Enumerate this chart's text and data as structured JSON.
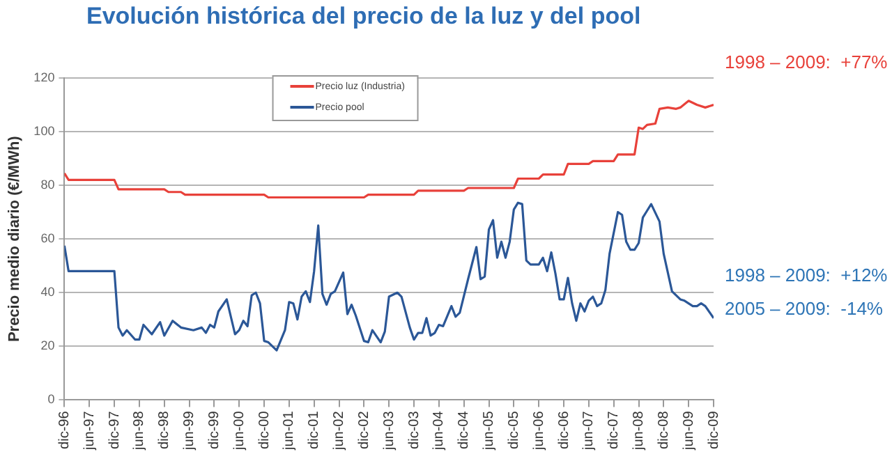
{
  "chart_data": {
    "type": "line",
    "title": "Evolución histórica del precio de la luz y del pool",
    "ylabel": "Precio medio diario (€/MWh)",
    "xlim": [
      "1996-12",
      "2009-12"
    ],
    "xticks": [
      {
        "value": "1996-12",
        "label": "dic-96"
      },
      {
        "value": "1997-06",
        "label": "jun-97"
      },
      {
        "value": "1997-12",
        "label": "dic-97"
      },
      {
        "value": "1998-06",
        "label": "jun-98"
      },
      {
        "value": "1998-12",
        "label": "dic-98"
      },
      {
        "value": "1999-06",
        "label": "jun-99"
      },
      {
        "value": "1999-12",
        "label": "dic-99"
      },
      {
        "value": "2000-06",
        "label": "jun-00"
      },
      {
        "value": "2000-12",
        "label": "dic-00"
      },
      {
        "value": "2001-06",
        "label": "jun-01"
      },
      {
        "value": "2001-12",
        "label": "dic-01"
      },
      {
        "value": "2002-06",
        "label": "jun-02"
      },
      {
        "value": "2002-12",
        "label": "dic-02"
      },
      {
        "value": "2003-06",
        "label": "jun-03"
      },
      {
        "value": "2003-12",
        "label": "dic-03"
      },
      {
        "value": "2004-06",
        "label": "jun-04"
      },
      {
        "value": "2004-12",
        "label": "dic-04"
      },
      {
        "value": "2005-06",
        "label": "jun-05"
      },
      {
        "value": "2005-12",
        "label": "dic-05"
      },
      {
        "value": "2006-06",
        "label": "jun-06"
      },
      {
        "value": "2006-12",
        "label": "dic-06"
      },
      {
        "value": "2007-06",
        "label": "jun-07"
      },
      {
        "value": "2007-12",
        "label": "dic-07"
      },
      {
        "value": "2008-06",
        "label": "jun-08"
      },
      {
        "value": "2008-12",
        "label": "dic-08"
      },
      {
        "value": "2009-06",
        "label": "jun-09"
      },
      {
        "value": "2009-12",
        "label": "dic-09"
      }
    ],
    "ylim": [
      0,
      120
    ],
    "yticks": [
      0,
      20,
      40,
      60,
      80,
      100,
      120
    ],
    "grid": "y",
    "legend": "top",
    "marker": "none",
    "series": [
      {
        "name": "Precio luz (Industria)",
        "color": "#e8413a",
        "x": [
          "1996-12",
          "1997-01",
          "1997-12",
          "1998-01",
          "1998-12",
          "1999-01",
          "1999-04",
          "1999-05",
          "2000-12",
          "2001-01",
          "2002-12",
          "2003-01",
          "2003-12",
          "2004-01",
          "2004-12",
          "2005-01",
          "2005-12",
          "2006-01",
          "2006-06",
          "2006-07",
          "2006-12",
          "2007-01",
          "2007-06",
          "2007-07",
          "2007-12",
          "2008-01",
          "2008-05",
          "2008-06",
          "2008-07",
          "2008-08",
          "2008-10",
          "2008-11",
          "2009-01",
          "2009-03",
          "2009-04",
          "2009-06",
          "2009-08",
          "2009-10",
          "2009-12"
        ],
        "values": [
          84.5,
          82,
          82,
          78.5,
          78.5,
          77.5,
          77.5,
          76.5,
          76.5,
          75.5,
          75.5,
          76.5,
          76.5,
          78,
          78,
          79,
          79,
          82.5,
          82.5,
          84,
          84,
          88,
          88,
          89,
          89,
          91.5,
          91.5,
          101.5,
          101,
          102.5,
          103,
          108.5,
          109,
          108.5,
          109,
          111.5,
          110,
          109,
          110
        ]
      },
      {
        "name": "Precio pool",
        "color": "#2b5797",
        "x": [
          "1996-12",
          "1997-01",
          "1997-12",
          "1998-01",
          "1998-02",
          "1998-03",
          "1998-05",
          "1998-06",
          "1998-07",
          "1998-09",
          "1998-11",
          "1998-12",
          "1999-02",
          "1999-04",
          "1999-07",
          "1999-09",
          "1999-10",
          "1999-11",
          "1999-12",
          "2000-01",
          "2000-03",
          "2000-05",
          "2000-06",
          "2000-07",
          "2000-08",
          "2000-09",
          "2000-10",
          "2000-11",
          "2000-12",
          "2001-01",
          "2001-03",
          "2001-05",
          "2001-06",
          "2001-07",
          "2001-08",
          "2001-09",
          "2001-10",
          "2001-11",
          "2001-12",
          "2002-01",
          "2002-02",
          "2002-03",
          "2002-04",
          "2002-05",
          "2002-07",
          "2002-08",
          "2002-09",
          "2002-10",
          "2002-12",
          "2003-01",
          "2003-02",
          "2003-04",
          "2003-05",
          "2003-06",
          "2003-08",
          "2003-09",
          "2003-11",
          "2003-12",
          "2004-01",
          "2004-02",
          "2004-03",
          "2004-04",
          "2004-05",
          "2004-06",
          "2004-07",
          "2004-09",
          "2004-10",
          "2004-11",
          "2005-01",
          "2005-03",
          "2005-04",
          "2005-05",
          "2005-06",
          "2005-07",
          "2005-08",
          "2005-09",
          "2005-10",
          "2005-11",
          "2005-12",
          "2006-01",
          "2006-02",
          "2006-03",
          "2006-04",
          "2006-06",
          "2006-07",
          "2006-08",
          "2006-09",
          "2006-10",
          "2006-11",
          "2006-12",
          "2007-01",
          "2007-02",
          "2007-03",
          "2007-04",
          "2007-05",
          "2007-06",
          "2007-07",
          "2007-08",
          "2007-09",
          "2007-10",
          "2007-11",
          "2008-01",
          "2008-02",
          "2008-03",
          "2008-04",
          "2008-05",
          "2008-06",
          "2008-07",
          "2008-08",
          "2008-09",
          "2008-11",
          "2008-12",
          "2009-02",
          "2009-04",
          "2009-05",
          "2009-07",
          "2009-08",
          "2009-09",
          "2009-10",
          "2009-12"
        ],
        "values": [
          57.5,
          48,
          48,
          27,
          24,
          26,
          22.5,
          22.5,
          28,
          24.5,
          29,
          24,
          29.5,
          27,
          26,
          27,
          25,
          28,
          27,
          33,
          37.5,
          24.5,
          26,
          29.5,
          27.5,
          39,
          40,
          36,
          22,
          21.5,
          18.5,
          26,
          36.5,
          36,
          30,
          38.5,
          40.5,
          36.5,
          48,
          65,
          39.5,
          35.5,
          39.5,
          40.5,
          47.5,
          32,
          35.5,
          31.5,
          22,
          21.5,
          26,
          21.5,
          25.5,
          38.5,
          40,
          38.5,
          27,
          22.5,
          25,
          25,
          30.5,
          24,
          25,
          28,
          27.5,
          35,
          31,
          32.5,
          45,
          57,
          45,
          46,
          63.5,
          67,
          53,
          59,
          53,
          59,
          71,
          73.5,
          73,
          52,
          50.5,
          50.5,
          53,
          48,
          55,
          47,
          37.5,
          37.5,
          45.5,
          36,
          29.5,
          36,
          33,
          37,
          38.5,
          35,
          36,
          41,
          54.5,
          70,
          69,
          59,
          56,
          56,
          58.5,
          68,
          70.5,
          73,
          66.5,
          54.5,
          40.5,
          37.5,
          37,
          35,
          35,
          36,
          35,
          30.5
        ]
      }
    ],
    "annotations": [
      "1998 – 2009:  +77%",
      "1998 – 2009:  +12%",
      "2005 – 2009:  -14%"
    ]
  }
}
